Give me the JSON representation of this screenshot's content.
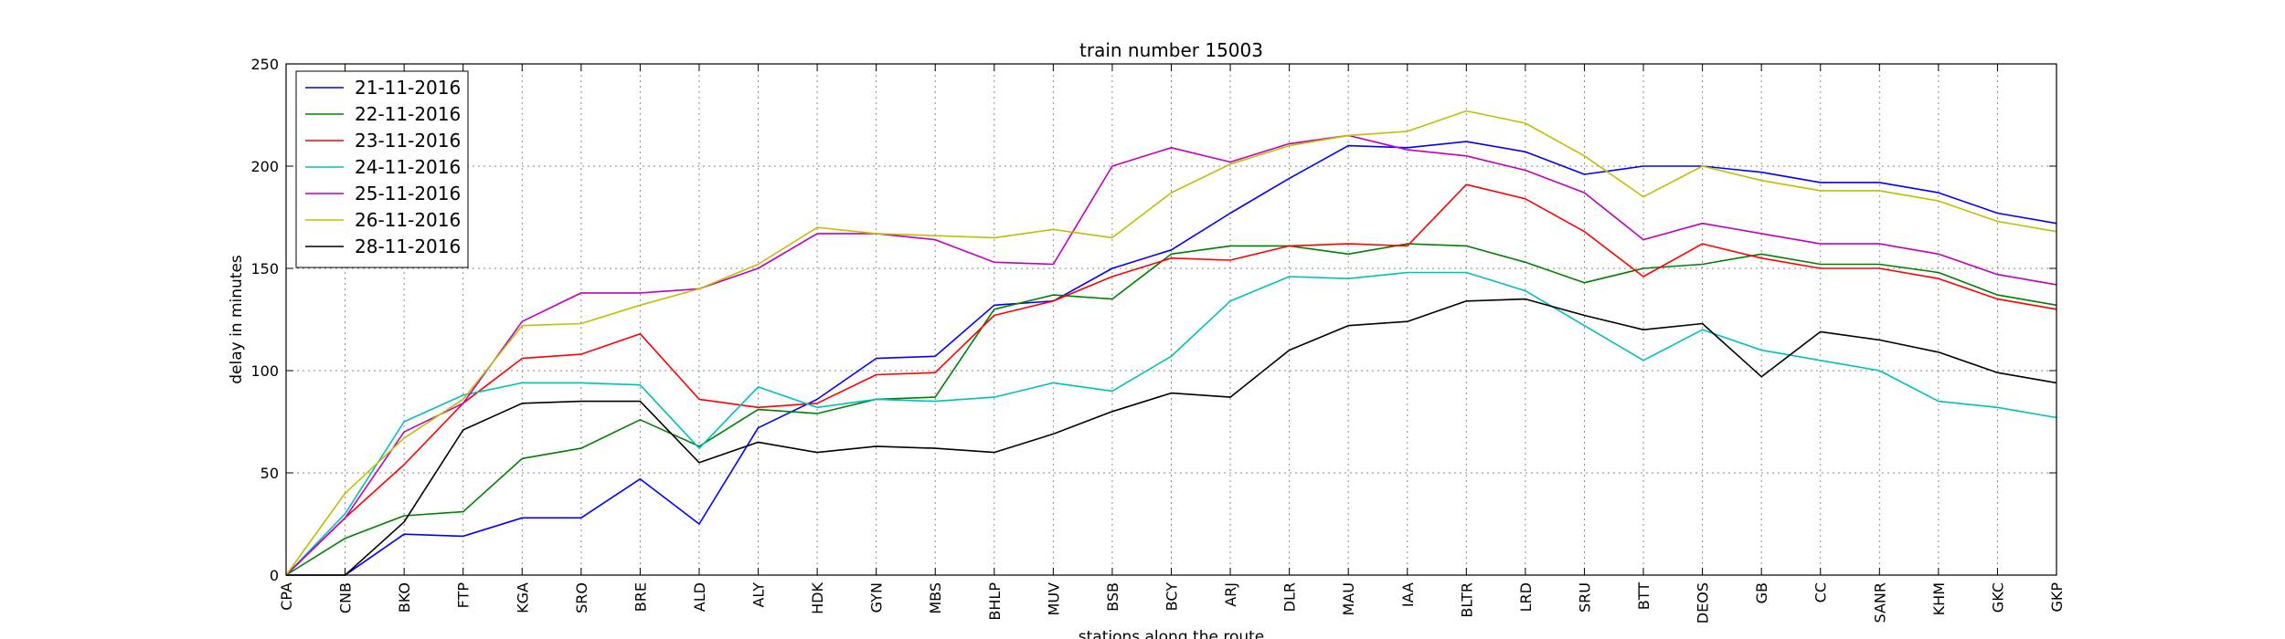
{
  "chart_data": {
    "type": "line",
    "title": "train number 15003",
    "xlabel": "stations along the route",
    "ylabel": "delay in minutes",
    "ylim": [
      0,
      250
    ],
    "yticks": [
      0,
      50,
      100,
      150,
      200,
      250
    ],
    "grid": true,
    "legend_position": "top-left",
    "categories": [
      "CPA",
      "CNB",
      "BKO",
      "FTP",
      "KGA",
      "SRO",
      "BRE",
      "ALD",
      "ALY",
      "HDK",
      "GYN",
      "MBS",
      "BHLP",
      "MUV",
      "BSB",
      "BCY",
      "ARJ",
      "DLR",
      "MAU",
      "IAA",
      "BLTR",
      "LRD",
      "SRU",
      "BTT",
      "DEOS",
      "GB",
      "CC",
      "SANR",
      "KHM",
      "GKC",
      "GKP"
    ],
    "series": [
      {
        "name": "21-11-2016",
        "color": "#0000ff",
        "values": [
          0,
          0,
          20,
          19,
          28,
          28,
          47,
          25,
          72,
          86,
          106,
          107,
          132,
          134,
          150,
          159,
          177,
          194,
          210,
          209,
          212,
          207,
          196,
          200,
          200,
          197,
          192,
          192,
          187,
          177,
          172
        ]
      },
      {
        "name": "22-11-2016",
        "color": "#008000",
        "values": [
          0,
          18,
          29,
          31,
          57,
          62,
          76,
          63,
          81,
          79,
          86,
          87,
          130,
          137,
          135,
          157,
          161,
          161,
          157,
          162,
          161,
          153,
          143,
          150,
          152,
          157,
          152,
          152,
          148,
          137,
          132
        ]
      },
      {
        "name": "23-11-2016",
        "color": "#ff0000",
        "values": [
          0,
          28,
          54,
          84,
          106,
          108,
          118,
          86,
          82,
          84,
          98,
          99,
          127,
          134,
          146,
          155,
          154,
          161,
          162,
          161,
          191,
          184,
          168,
          146,
          162,
          155,
          150,
          150,
          145,
          135,
          130
        ]
      },
      {
        "name": "24-11-2016",
        "color": "#00bfbf",
        "values": [
          0,
          30,
          75,
          88,
          94,
          94,
          93,
          62,
          92,
          82,
          86,
          85,
          87,
          94,
          90,
          107,
          134,
          146,
          145,
          148,
          148,
          139,
          122,
          105,
          120,
          110,
          105,
          100,
          85,
          82,
          77
        ]
      },
      {
        "name": "25-11-2016",
        "color": "#bf00bf",
        "values": [
          0,
          28,
          70,
          84,
          124,
          138,
          138,
          140,
          150,
          167,
          167,
          164,
          153,
          152,
          200,
          209,
          202,
          211,
          215,
          208,
          205,
          198,
          187,
          164,
          172,
          167,
          162,
          162,
          157,
          147,
          142
        ]
      },
      {
        "name": "26-11-2016",
        "color": "#bfbf00",
        "values": [
          0,
          40,
          67,
          86,
          122,
          123,
          132,
          140,
          152,
          170,
          167,
          166,
          165,
          169,
          165,
          187,
          201,
          210,
          215,
          217,
          227,
          221,
          205,
          185,
          200,
          193,
          188,
          188,
          183,
          173,
          168
        ]
      },
      {
        "name": "28-11-2016",
        "color": "#000000",
        "values": [
          0,
          0,
          26,
          71,
          84,
          85,
          85,
          55,
          65,
          60,
          63,
          62,
          60,
          69,
          80,
          89,
          87,
          110,
          122,
          124,
          134,
          135,
          127,
          120,
          123,
          97,
          119,
          115,
          109,
          99,
          94
        ]
      }
    ]
  }
}
